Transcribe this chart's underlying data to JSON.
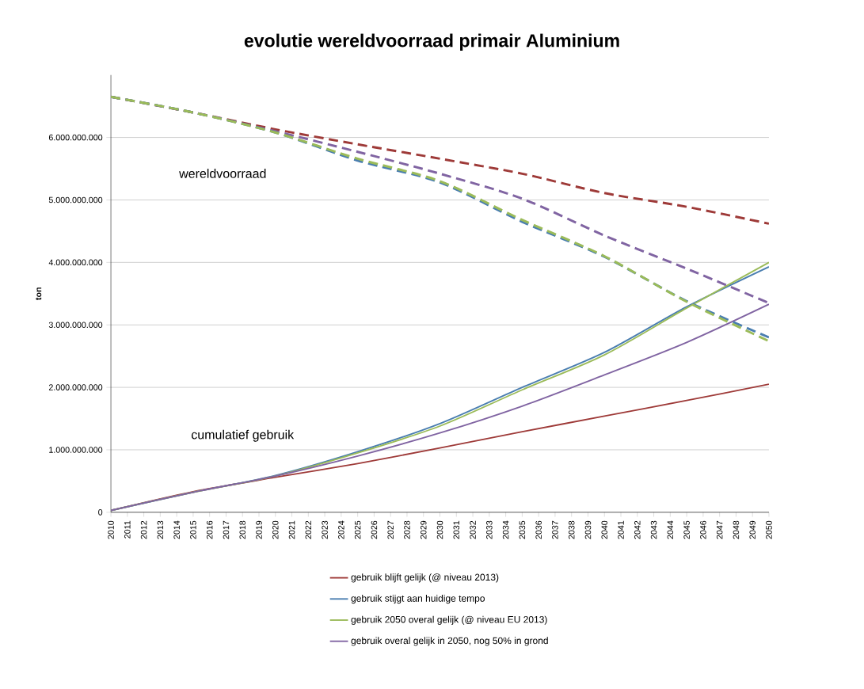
{
  "chart_data": {
    "type": "line",
    "title": "evolutie wereldvoorraad primair Aluminium",
    "ylabel": "ton",
    "xlim": [
      2010,
      2050
    ],
    "xticks": [
      2010,
      2011,
      2012,
      2013,
      2014,
      2015,
      2016,
      2017,
      2018,
      2019,
      2020,
      2021,
      2022,
      2023,
      2024,
      2025,
      2026,
      2027,
      2028,
      2029,
      2030,
      2031,
      2032,
      2033,
      2034,
      2035,
      2036,
      2037,
      2038,
      2039,
      2040,
      2041,
      2042,
      2043,
      2044,
      2045,
      2046,
      2047,
      2048,
      2049,
      2050
    ],
    "ylim": [
      0,
      7000000000
    ],
    "yticks": [
      0,
      {
        "value": 1000000000,
        "label": "1.000.000.000"
      },
      {
        "value": 2000000000,
        "label": "2.000.000.000"
      },
      {
        "value": 3000000000,
        "label": "3.000.000.000"
      },
      {
        "value": 4000000000,
        "label": "4.000.000.000"
      },
      {
        "value": 5000000000,
        "label": "5.000.000.000"
      },
      {
        "value": 6000000000,
        "label": "6.000.000.000"
      }
    ],
    "grid": "y",
    "legend": "bottom",
    "line_style": "solid",
    "x": [
      2010,
      2015,
      2020,
      2025,
      2030,
      2035,
      2040,
      2045,
      2050
    ],
    "series": [
      {
        "name": "gebruik blijft gelijk (@ niveau 2013)",
        "color": "#9e3a38",
        "values": [
          30000000,
          330000000,
          560000000,
          780000000,
          1030000000,
          1290000000,
          1540000000,
          1790000000,
          2050000000
        ]
      },
      {
        "name": "gebruik stijgt aan huidige tempo",
        "color": "#4a7eb0",
        "values": [
          30000000,
          320000000,
          590000000,
          970000000,
          1420000000,
          2000000000,
          2560000000,
          3290000000,
          3930000000
        ]
      },
      {
        "name": "gebruik 2050 overal gelijk (@ niveau EU 2013)",
        "color": "#9bbb59",
        "values": [
          30000000,
          320000000,
          580000000,
          950000000,
          1380000000,
          1960000000,
          2520000000,
          3270000000,
          4000000000
        ]
      },
      {
        "name": "gebruik overal gelijk in 2050, nog 50% in grond",
        "color": "#8064a2",
        "values": [
          30000000,
          320000000,
          580000000,
          900000000,
          1270000000,
          1700000000,
          2200000000,
          2720000000,
          3330000000
        ]
      },
      {
        "color": "#9e3a38",
        "line_style": "dashed",
        "values": [
          6650000000,
          6400000000,
          6130000000,
          5890000000,
          5660000000,
          5420000000,
          5110000000,
          4890000000,
          4620000000
        ]
      },
      {
        "color": "#8064a2",
        "line_style": "dashed",
        "values": [
          6650000000,
          6400000000,
          6100000000,
          5770000000,
          5420000000,
          5020000000,
          4430000000,
          3900000000,
          3350000000
        ]
      },
      {
        "color": "#4a7eb0",
        "line_style": "dashed",
        "values": [
          6650000000,
          6400000000,
          6080000000,
          5630000000,
          5280000000,
          4650000000,
          4090000000,
          3380000000,
          2800000000
        ]
      },
      {
        "color": "#9bbb59",
        "line_style": "dashed",
        "values": [
          6650000000,
          6400000000,
          6080000000,
          5660000000,
          5300000000,
          4680000000,
          4100000000,
          3370000000,
          2740000000
        ]
      }
    ],
    "annotations": [
      "wereldvoorraad",
      "cumulatief gebruik"
    ]
  }
}
